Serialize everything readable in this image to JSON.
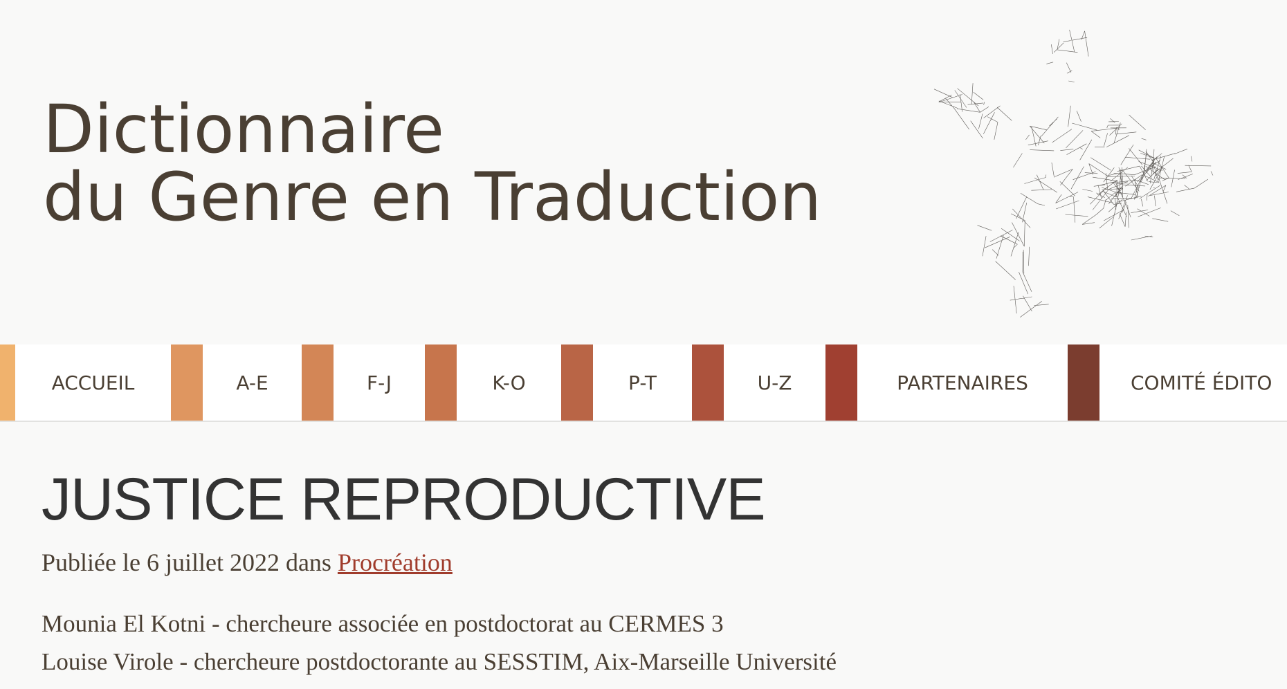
{
  "site": {
    "title_line1": "Dictionnaire",
    "title_line2": "du Genre en Traduction",
    "logo": "network-graph-logo"
  },
  "nav": {
    "items": [
      {
        "label": "ACCUEIL",
        "color": "#f0b26d"
      },
      {
        "label": "A-E",
        "color": "#df9660"
      },
      {
        "label": "F-J",
        "color": "#d38656"
      },
      {
        "label": "K-O",
        "color": "#c7754c"
      },
      {
        "label": "P-T",
        "color": "#b96546"
      },
      {
        "label": "U-Z",
        "color": "#ac523c"
      },
      {
        "label": "PARTENAIRES",
        "color": "#a04031"
      },
      {
        "label": "COMITÉ ÉDITO",
        "color": "#7b3d2f"
      }
    ]
  },
  "article": {
    "title": "JUSTICE REPRODUCTIVE",
    "published_prefix": "Publiée le 6 juillet 2022 dans",
    "category": "Procréation",
    "authors": [
      "Mounia El Kotni - chercheure associée en postdoctorat au CERMES 3",
      "Louise Virole - chercheure postdoctorante au SESSTIM, Aix-Marseille Université"
    ]
  },
  "colors": {
    "link": "#a03c2c",
    "text": "#4a3f33"
  }
}
